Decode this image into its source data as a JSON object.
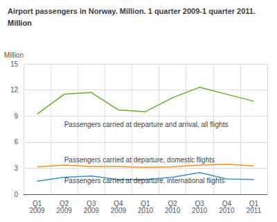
{
  "chart_data": {
    "type": "line",
    "title": "Airport passengers in Norway. Million. 1 quarter 2009-1 quarter 2011.",
    "subtitle": "Million",
    "ylabel": "Million",
    "categories": [
      "Q1\n2009",
      "Q2\n2009",
      "Q3\n2009",
      "Q4\n2009",
      "Q1\n2010",
      "Q2\n2010",
      "Q3\n2010",
      "Q4\n2010",
      "Q1\n2011"
    ],
    "series": [
      {
        "color": "#6aaa2a",
        "values": [
          9.2,
          11.5,
          11.7,
          9.7,
          9.5,
          11.1,
          12.3,
          11.5,
          10.7
        ]
      },
      {
        "color": "#f5921e",
        "values": [
          3.15,
          3.35,
          3.2,
          3.2,
          3.1,
          3.15,
          3.35,
          3.45,
          3.25
        ]
      },
      {
        "color": "#3d8fc6",
        "values": [
          1.5,
          1.95,
          2.1,
          1.7,
          1.7,
          1.95,
          2.5,
          1.75,
          1.7
        ]
      }
    ],
    "annotations": [
      {
        "x": "Q2\n2009",
        "y": 8.6,
        "text": "Passengers carried at departure and arrival, all flights"
      },
      {
        "x": "Q2\n2009",
        "y": 4.5,
        "text": "Passengers carried at departure, domestic flights"
      },
      {
        "x": "Q2\n2009",
        "y": 2.1,
        "text": "Passengers carried at departure, international flights"
      }
    ],
    "ylim": [
      0,
      15
    ],
    "yticks": [
      0,
      3,
      6,
      9,
      12,
      15
    ],
    "grid": true
  }
}
